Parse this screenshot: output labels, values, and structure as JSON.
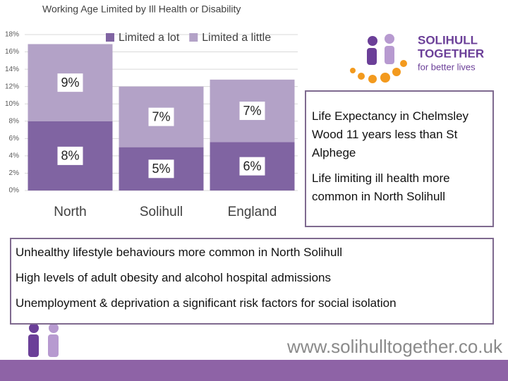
{
  "chart_data": {
    "type": "stacked_bar",
    "title": "Working Age Limited by Ill Health or Disability",
    "categories": [
      "North",
      "Solihull",
      "England"
    ],
    "series": [
      {
        "name": "Limited a lot",
        "color": "#8064a2",
        "values": [
          8.0,
          5.0,
          5.6
        ],
        "value_labels": [
          "8%",
          "5%",
          "6%"
        ]
      },
      {
        "name": "Limited a little",
        "color": "#b3a2c7",
        "values": [
          8.9,
          7.0,
          7.2
        ],
        "value_labels": [
          "9%",
          "7%",
          "7%"
        ]
      }
    ],
    "ylim": [
      0,
      18
    ],
    "yticks": [
      {
        "value": 0,
        "label": "0%"
      },
      {
        "value": 2,
        "label": "2%"
      },
      {
        "value": 4,
        "label": "4%"
      },
      {
        "value": 6,
        "label": "6%"
      },
      {
        "value": 8,
        "label": "8%"
      },
      {
        "value": 10,
        "label": "10%"
      },
      {
        "value": 12,
        "label": "12%"
      },
      {
        "value": 14,
        "label": "14%"
      },
      {
        "value": 16,
        "label": "16%"
      },
      {
        "value": 18,
        "label": "18%"
      }
    ],
    "grid": true,
    "legend": "top"
  },
  "logo": {
    "line1": "SOLIHULL",
    "line2": "TOGETHER",
    "line3": "for better lives"
  },
  "box1": {
    "paragraphs": [
      "Life Expectancy in Chelmsley Wood 11 years less than St Alphege",
      "Life limiting ill health more common in North Solihull"
    ]
  },
  "box2": {
    "paragraphs": [
      "Unhealthy lifestyle behaviours more common in North Solihull",
      "High levels of adult obesity and alcohol hospital admissions",
      "Unemployment & deprivation a significant risk factors for social isolation"
    ]
  },
  "footer": {
    "url": "www.solihulltogether.co.uk"
  }
}
